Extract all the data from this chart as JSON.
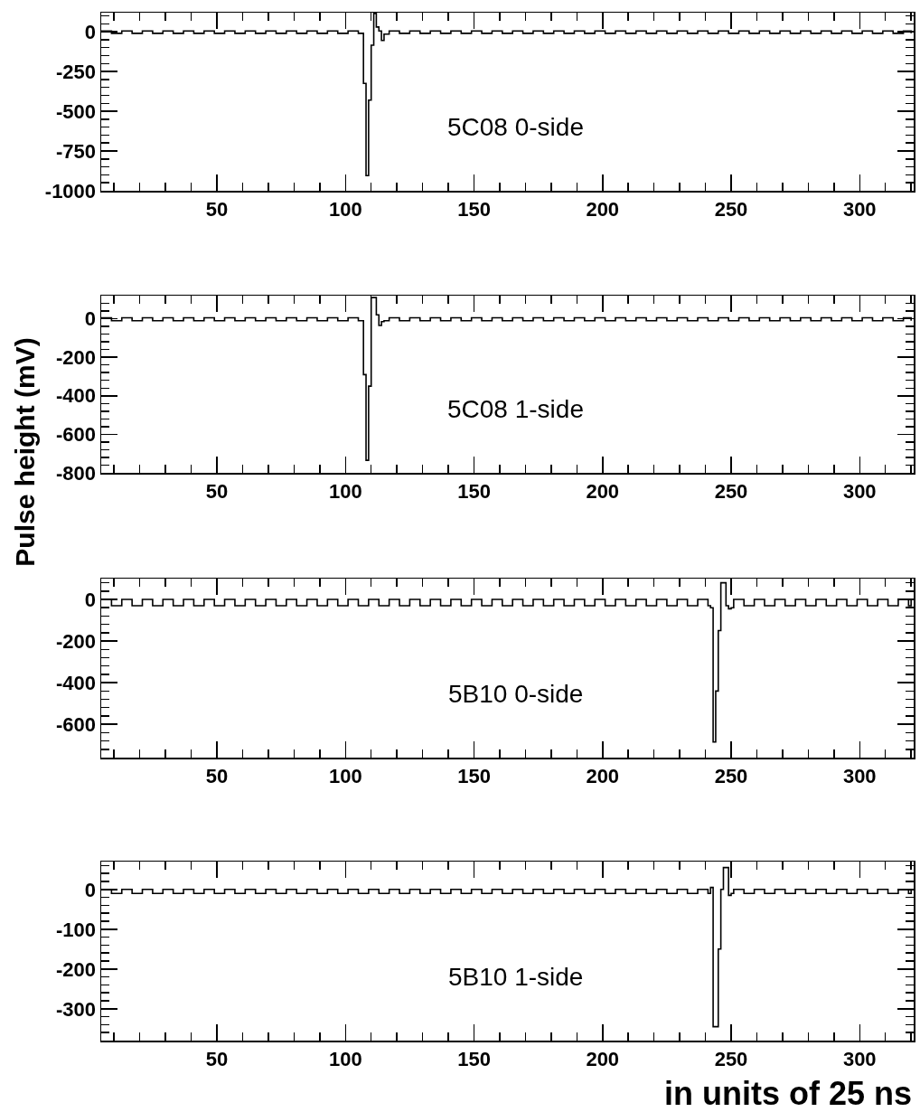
{
  "chart_data": [
    {
      "type": "step",
      "annotations": [
        "5C08 0-side"
      ],
      "xlim": [
        5,
        321
      ],
      "xticks": [
        50,
        100,
        150,
        200,
        250,
        300
      ],
      "ylim": [
        -1000,
        120
      ],
      "yticks": [
        0,
        -250,
        -500,
        -750,
        -1000
      ],
      "grid": false,
      "x": [
        5,
        9,
        13,
        17,
        21,
        25,
        29,
        33,
        37,
        41,
        45,
        49,
        53,
        57,
        61,
        65,
        69,
        73,
        77,
        81,
        85,
        89,
        93,
        97,
        101,
        105,
        107,
        108,
        109,
        110,
        111,
        112,
        113,
        114,
        115,
        117,
        121,
        125,
        129,
        133,
        137,
        141,
        145,
        149,
        153,
        157,
        161,
        165,
        169,
        173,
        177,
        181,
        185,
        189,
        193,
        197,
        201,
        205,
        209,
        213,
        217,
        221,
        225,
        229,
        233,
        237,
        241,
        245,
        249,
        253,
        257,
        261,
        265,
        269,
        273,
        277,
        281,
        285,
        289,
        293,
        297,
        301,
        305,
        309,
        313,
        317,
        320
      ],
      "series": [
        {
          "color": "#000000",
          "values": [
            5,
            -10,
            5,
            -10,
            5,
            -10,
            5,
            -10,
            5,
            -10,
            5,
            -10,
            5,
            -10,
            5,
            -10,
            5,
            -10,
            5,
            -10,
            5,
            -10,
            5,
            -10,
            5,
            -10,
            -325,
            -905,
            -430,
            -85,
            115,
            30,
            5,
            -55,
            -15,
            5,
            -10,
            5,
            -10,
            5,
            -10,
            5,
            -10,
            5,
            -10,
            5,
            -10,
            5,
            -10,
            5,
            -10,
            5,
            -10,
            5,
            -10,
            5,
            -10,
            5,
            -10,
            5,
            -10,
            5,
            -10,
            5,
            -10,
            5,
            -10,
            5,
            -10,
            5,
            -10,
            5,
            -10,
            5,
            -10,
            5,
            -10,
            5,
            -10,
            5,
            -10,
            5,
            -10,
            5,
            -10,
            5,
            -10
          ]
        }
      ]
    },
    {
      "type": "step",
      "annotations": [
        "5C08 1-side"
      ],
      "ylabel": "Pulse height (mV)",
      "xlim": [
        5,
        321
      ],
      "xticks": [
        50,
        100,
        150,
        200,
        250,
        300
      ],
      "ylim": [
        -800,
        120
      ],
      "yticks": [
        0,
        -200,
        -400,
        -600,
        -800
      ],
      "grid": false,
      "x": [
        5,
        9,
        13,
        17,
        21,
        25,
        29,
        33,
        37,
        41,
        45,
        49,
        53,
        57,
        61,
        65,
        69,
        73,
        77,
        81,
        85,
        89,
        93,
        97,
        101,
        105,
        107,
        108,
        109,
        110,
        111,
        112,
        113,
        114,
        115,
        117,
        121,
        125,
        129,
        133,
        137,
        141,
        145,
        149,
        153,
        157,
        161,
        165,
        169,
        173,
        177,
        181,
        185,
        189,
        193,
        197,
        201,
        205,
        209,
        213,
        217,
        221,
        225,
        229,
        233,
        237,
        241,
        245,
        249,
        253,
        257,
        261,
        265,
        269,
        273,
        277,
        281,
        285,
        289,
        293,
        297,
        301,
        305,
        309,
        313,
        317,
        320
      ],
      "series": [
        {
          "color": "#000000",
          "values": [
            5,
            -10,
            5,
            -10,
            5,
            -10,
            5,
            -10,
            5,
            -10,
            5,
            -10,
            5,
            -10,
            5,
            -10,
            5,
            -10,
            5,
            -10,
            5,
            -10,
            5,
            -10,
            5,
            -10,
            -290,
            -735,
            -350,
            110,
            110,
            20,
            -35,
            -15,
            -10,
            5,
            -10,
            5,
            -10,
            5,
            -10,
            5,
            -10,
            5,
            -10,
            5,
            -10,
            5,
            -10,
            5,
            -10,
            5,
            -10,
            5,
            -10,
            5,
            -10,
            5,
            -10,
            5,
            -10,
            5,
            -10,
            5,
            -10,
            5,
            -10,
            5,
            -10,
            5,
            -10,
            5,
            -10,
            5,
            -10,
            5,
            -10,
            5,
            -10,
            5,
            -10,
            5,
            -10,
            5,
            -10,
            5,
            -10
          ]
        }
      ]
    },
    {
      "type": "step",
      "annotations": [
        "5B10 0-side"
      ],
      "xlim": [
        5,
        321
      ],
      "xticks": [
        50,
        100,
        150,
        200,
        250,
        300
      ],
      "ylim": [
        -760,
        100
      ],
      "yticks": [
        0,
        -200,
        -400,
        -600
      ],
      "grid": false,
      "x": [
        5,
        9,
        13,
        17,
        21,
        25,
        29,
        33,
        37,
        41,
        45,
        49,
        53,
        57,
        61,
        65,
        69,
        73,
        77,
        81,
        85,
        89,
        93,
        97,
        101,
        105,
        109,
        113,
        117,
        121,
        125,
        129,
        133,
        137,
        141,
        145,
        149,
        153,
        157,
        161,
        165,
        169,
        173,
        177,
        181,
        185,
        189,
        193,
        197,
        201,
        205,
        209,
        213,
        217,
        221,
        225,
        229,
        233,
        237,
        241,
        242,
        243,
        244,
        245,
        246,
        247,
        248,
        249,
        250,
        251,
        255,
        259,
        263,
        267,
        271,
        275,
        279,
        283,
        287,
        291,
        295,
        299,
        303,
        307,
        311,
        315,
        319,
        320
      ],
      "series": [
        {
          "color": "#000000",
          "values": [
            0,
            -30,
            0,
            -30,
            0,
            -30,
            0,
            -30,
            0,
            -30,
            0,
            -30,
            0,
            -30,
            0,
            -30,
            0,
            -30,
            0,
            -30,
            0,
            -30,
            0,
            -30,
            0,
            -30,
            0,
            -30,
            0,
            -30,
            0,
            -30,
            0,
            -30,
            0,
            -30,
            0,
            -30,
            0,
            -30,
            0,
            -30,
            0,
            -30,
            0,
            -30,
            0,
            -30,
            0,
            -30,
            0,
            -30,
            0,
            -30,
            0,
            -30,
            0,
            -30,
            0,
            -30,
            -40,
            -685,
            -440,
            -150,
            80,
            80,
            -30,
            -45,
            -40,
            0,
            -30,
            0,
            -30,
            0,
            -30,
            0,
            -30,
            0,
            -30,
            0,
            -30,
            0,
            -30,
            0,
            -30,
            0,
            -30,
            0
          ]
        }
      ]
    },
    {
      "type": "step",
      "annotations": [
        "5B10 1-side"
      ],
      "xlabel": "in units of 25 ns",
      "xlim": [
        5,
        321
      ],
      "xticks": [
        50,
        100,
        150,
        200,
        250,
        300
      ],
      "ylim": [
        -380,
        70
      ],
      "yticks": [
        0,
        -100,
        -200,
        -300
      ],
      "grid": false,
      "x": [
        5,
        9,
        13,
        17,
        21,
        25,
        29,
        33,
        37,
        41,
        45,
        49,
        53,
        57,
        61,
        65,
        69,
        73,
        77,
        81,
        85,
        89,
        93,
        97,
        101,
        105,
        109,
        113,
        117,
        121,
        125,
        129,
        133,
        137,
        141,
        145,
        149,
        153,
        157,
        161,
        165,
        169,
        173,
        177,
        181,
        185,
        189,
        193,
        197,
        201,
        205,
        209,
        213,
        217,
        221,
        225,
        229,
        233,
        237,
        241,
        242,
        243,
        244,
        245,
        246,
        247,
        248,
        249,
        250,
        251,
        255,
        259,
        263,
        267,
        271,
        275,
        279,
        283,
        287,
        291,
        295,
        299,
        303,
        307,
        311,
        315,
        319,
        320
      ],
      "series": [
        {
          "color": "#000000",
          "values": [
            0,
            -10,
            0,
            -10,
            0,
            -10,
            0,
            -10,
            0,
            -10,
            0,
            -10,
            0,
            -10,
            0,
            -10,
            0,
            -10,
            0,
            -10,
            0,
            -10,
            0,
            -10,
            0,
            -10,
            0,
            -10,
            0,
            -10,
            0,
            -10,
            0,
            -10,
            0,
            -10,
            0,
            -10,
            0,
            -10,
            0,
            -10,
            0,
            -10,
            0,
            -10,
            0,
            -10,
            0,
            -10,
            0,
            -10,
            0,
            -10,
            0,
            -10,
            0,
            -10,
            0,
            -10,
            5,
            -345,
            -345,
            -150,
            0,
            55,
            55,
            -15,
            -10,
            0,
            -10,
            0,
            -10,
            0,
            -10,
            0,
            -10,
            0,
            -10,
            0,
            -10,
            0,
            -10,
            0,
            -10,
            0,
            -10,
            0
          ]
        }
      ]
    }
  ]
}
